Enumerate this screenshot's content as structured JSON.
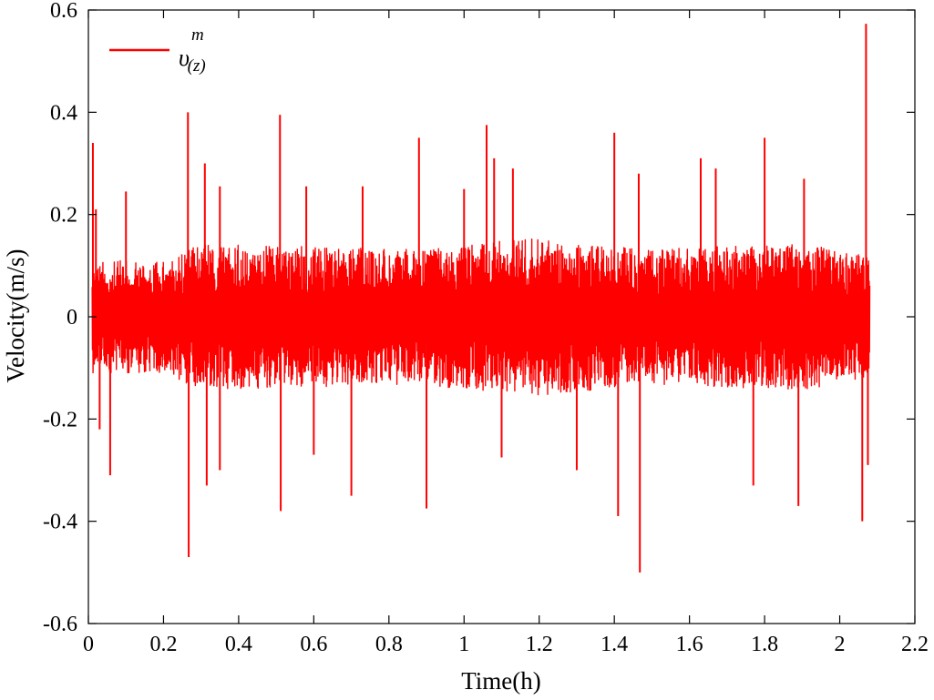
{
  "chart_data": {
    "type": "line",
    "xlabel": "Time(h)",
    "ylabel": "Velocity(m/s)",
    "xlim": [
      0,
      2.2
    ],
    "ylim": [
      -0.6,
      0.6
    ],
    "xticks": [
      0,
      0.2,
      0.4,
      0.6,
      0.8,
      1,
      1.2,
      1.4,
      1.6,
      1.8,
      2,
      2.2
    ],
    "xtick_labels": [
      "0",
      "0.2",
      "0.4",
      "0.6",
      "0.8",
      "1",
      "1.2",
      "1.4",
      "1.6",
      "1.8",
      "2",
      "2.2"
    ],
    "yticks": [
      -0.6,
      -0.4,
      -0.2,
      0,
      0.2,
      0.4,
      0.6
    ],
    "ytick_labels": [
      "-0.6",
      "-0.4",
      "-0.2",
      "0",
      "0.2",
      "0.4",
      "0.6"
    ],
    "grid": false,
    "legend_position": "top-left",
    "series": [
      {
        "name": "υ(z)m",
        "name_base": "υ",
        "name_superscript": "m",
        "name_subscript": "(z)",
        "color": "#ff0000",
        "x_range": [
          0.01,
          2.08
        ],
        "noise_envelope": [
          {
            "x": 0.01,
            "amplitude": 0.1
          },
          {
            "x": 0.2,
            "amplitude": 0.1
          },
          {
            "x": 0.3,
            "amplitude": 0.13
          },
          {
            "x": 0.85,
            "amplitude": 0.12
          },
          {
            "x": 1.2,
            "amplitude": 0.14
          },
          {
            "x": 1.5,
            "amplitude": 0.12
          },
          {
            "x": 1.9,
            "amplitude": 0.13
          },
          {
            "x": 2.08,
            "amplitude": 0.11
          }
        ],
        "peaks": [
          [
            0.012,
            0.34
          ],
          [
            0.02,
            0.21
          ],
          [
            0.03,
            -0.22
          ],
          [
            0.058,
            -0.31
          ],
          [
            0.1,
            0.245
          ],
          [
            0.265,
            0.4
          ],
          [
            0.267,
            -0.47
          ],
          [
            0.31,
            0.3
          ],
          [
            0.315,
            -0.33
          ],
          [
            0.35,
            0.255
          ],
          [
            0.35,
            -0.3
          ],
          [
            0.51,
            0.395
          ],
          [
            0.512,
            -0.38
          ],
          [
            0.58,
            0.255
          ],
          [
            0.6,
            -0.27
          ],
          [
            0.7,
            -0.35
          ],
          [
            0.73,
            0.255
          ],
          [
            0.88,
            0.35
          ],
          [
            0.9,
            -0.375
          ],
          [
            1.0,
            0.25
          ],
          [
            1.06,
            0.375
          ],
          [
            1.08,
            0.31
          ],
          [
            1.1,
            -0.275
          ],
          [
            1.13,
            0.29
          ],
          [
            1.3,
            -0.3
          ],
          [
            1.4,
            0.36
          ],
          [
            1.41,
            -0.39
          ],
          [
            1.465,
            0.28
          ],
          [
            1.468,
            -0.5
          ],
          [
            1.63,
            0.31
          ],
          [
            1.67,
            0.29
          ],
          [
            1.77,
            -0.33
          ],
          [
            1.8,
            0.35
          ],
          [
            1.89,
            -0.37
          ],
          [
            1.905,
            0.27
          ],
          [
            2.06,
            -0.4
          ],
          [
            2.07,
            0.573
          ],
          [
            2.075,
            -0.29
          ]
        ]
      }
    ]
  }
}
